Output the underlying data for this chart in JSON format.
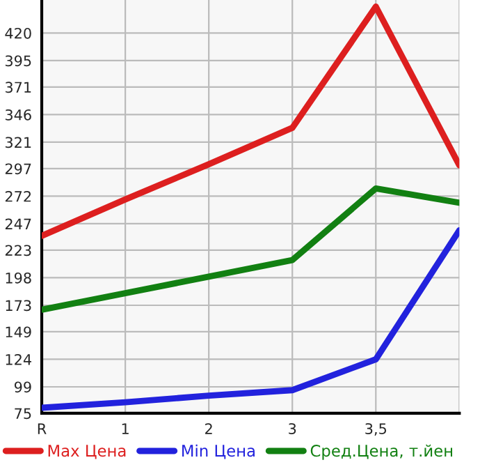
{
  "chart_data": {
    "type": "line",
    "categories": [
      "R",
      "1",
      "2",
      "3",
      "3,5",
      null
    ],
    "series": [
      {
        "name": "Max Цена",
        "color": "#dd1f1f",
        "values": [
          236,
          269,
          301,
          334,
          444,
          300
        ]
      },
      {
        "name": "Min Цена",
        "color": "#2222dd",
        "values": [
          80,
          85,
          91,
          96,
          124,
          241
        ]
      },
      {
        "name": "Сред.Цена, т.йен",
        "color": "#128012",
        "values": [
          169,
          184,
          199,
          214,
          279,
          266
        ]
      }
    ],
    "ylim": [
      75,
      450
    ],
    "yticks": [
      75,
      99,
      124,
      149,
      173,
      198,
      223,
      247,
      272,
      297,
      321,
      346,
      371,
      395,
      420
    ],
    "grid": true,
    "legend": "bottom",
    "marker": "none",
    "line_style": "solid"
  }
}
